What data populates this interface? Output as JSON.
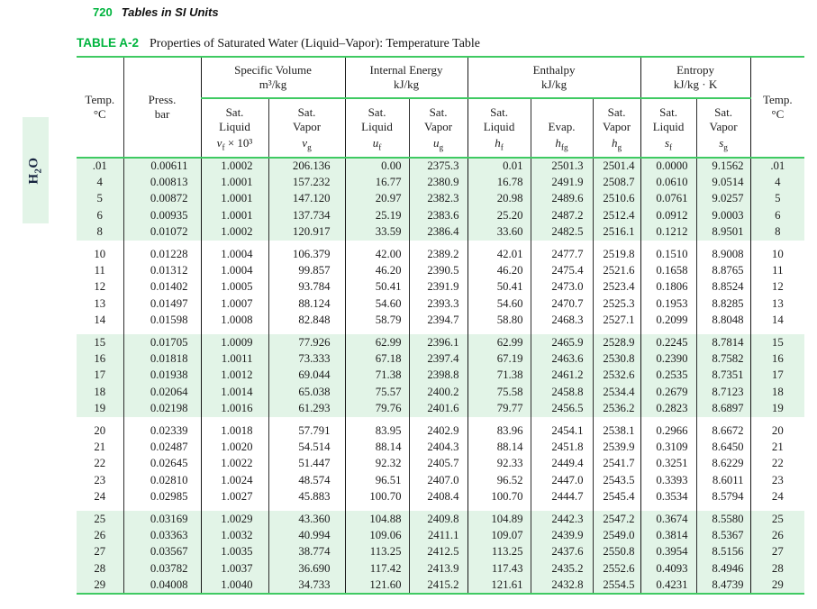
{
  "page": {
    "page_number": "720",
    "section_title": "Tables in SI Units",
    "table_label": "TABLE A-2",
    "table_title": "Properties of Saturated Water (Liquid–Vapor): Temperature Table",
    "side_tab": {
      "pre": "H",
      "sub": "2",
      "post": "O"
    }
  },
  "colors": {
    "accent_green_text": "#00b43e",
    "rule_green": "#3fca62",
    "row_shade_green": "#e2f4e7"
  },
  "table": {
    "left_axis": {
      "l1": "Temp.",
      "l2": "°C"
    },
    "press_axis": {
      "l1": "Press.",
      "l2": "bar"
    },
    "right_axis": {
      "l1": "Temp.",
      "l2": "°C"
    },
    "groups": [
      {
        "title": "Specific Volume",
        "unit": "m³/kg"
      },
      {
        "title": "Internal Energy",
        "unit": "kJ/kg"
      },
      {
        "title": "Enthalpy",
        "unit": "kJ/kg"
      },
      {
        "title": "Entropy",
        "unit": "kJ/kg · K"
      }
    ],
    "subcols": [
      {
        "l1": "Sat.",
        "l2": "Liquid",
        "base": "v",
        "sub": "f",
        "suffix": " × 10³"
      },
      {
        "l1": "Sat.",
        "l2": "Vapor",
        "base": "v",
        "sub": "g",
        "suffix": ""
      },
      {
        "l1": "Sat.",
        "l2": "Liquid",
        "base": "u",
        "sub": "f",
        "suffix": ""
      },
      {
        "l1": "Sat.",
        "l2": "Vapor",
        "base": "u",
        "sub": "g",
        "suffix": ""
      },
      {
        "l1": "Sat.",
        "l2": "Liquid",
        "base": "h",
        "sub": "f",
        "suffix": ""
      },
      {
        "l1": "",
        "l2": "Evap.",
        "base": "h",
        "sub": "fg",
        "suffix": ""
      },
      {
        "l1": "Sat.",
        "l2": "Vapor",
        "base": "h",
        "sub": "g",
        "suffix": ""
      },
      {
        "l1": "Sat.",
        "l2": "Liquid",
        "base": "s",
        "sub": "f",
        "suffix": ""
      },
      {
        "l1": "Sat.",
        "l2": "Vapor",
        "base": "s",
        "sub": "g",
        "suffix": ""
      }
    ],
    "col_keys": [
      "temp",
      "press",
      "vf",
      "vg",
      "uf",
      "ug",
      "hf",
      "hfg",
      "hg",
      "sf",
      "sg",
      "temp-right"
    ],
    "row_groups": [
      {
        "shaded": true,
        "rows": [
          [
            ".01",
            "0.00611",
            "1.0002",
            "206.136",
            "0.00",
            "2375.3",
            "0.01",
            "2501.3",
            "2501.4",
            "0.0000",
            "9.1562",
            ".01"
          ],
          [
            "4",
            "0.00813",
            "1.0001",
            "157.232",
            "16.77",
            "2380.9",
            "16.78",
            "2491.9",
            "2508.7",
            "0.0610",
            "9.0514",
            "4"
          ],
          [
            "5",
            "0.00872",
            "1.0001",
            "147.120",
            "20.97",
            "2382.3",
            "20.98",
            "2489.6",
            "2510.6",
            "0.0761",
            "9.0257",
            "5"
          ],
          [
            "6",
            "0.00935",
            "1.0001",
            "137.734",
            "25.19",
            "2383.6",
            "25.20",
            "2487.2",
            "2512.4",
            "0.0912",
            "9.0003",
            "6"
          ],
          [
            "8",
            "0.01072",
            "1.0002",
            "120.917",
            "33.59",
            "2386.4",
            "33.60",
            "2482.5",
            "2516.1",
            "0.1212",
            "8.9501",
            "8"
          ]
        ]
      },
      {
        "shaded": false,
        "rows": [
          [
            "10",
            "0.01228",
            "1.0004",
            "106.379",
            "42.00",
            "2389.2",
            "42.01",
            "2477.7",
            "2519.8",
            "0.1510",
            "8.9008",
            "10"
          ],
          [
            "11",
            "0.01312",
            "1.0004",
            "99.857",
            "46.20",
            "2390.5",
            "46.20",
            "2475.4",
            "2521.6",
            "0.1658",
            "8.8765",
            "11"
          ],
          [
            "12",
            "0.01402",
            "1.0005",
            "93.784",
            "50.41",
            "2391.9",
            "50.41",
            "2473.0",
            "2523.4",
            "0.1806",
            "8.8524",
            "12"
          ],
          [
            "13",
            "0.01497",
            "1.0007",
            "88.124",
            "54.60",
            "2393.3",
            "54.60",
            "2470.7",
            "2525.3",
            "0.1953",
            "8.8285",
            "13"
          ],
          [
            "14",
            "0.01598",
            "1.0008",
            "82.848",
            "58.79",
            "2394.7",
            "58.80",
            "2468.3",
            "2527.1",
            "0.2099",
            "8.8048",
            "14"
          ]
        ]
      },
      {
        "shaded": true,
        "rows": [
          [
            "15",
            "0.01705",
            "1.0009",
            "77.926",
            "62.99",
            "2396.1",
            "62.99",
            "2465.9",
            "2528.9",
            "0.2245",
            "8.7814",
            "15"
          ],
          [
            "16",
            "0.01818",
            "1.0011",
            "73.333",
            "67.18",
            "2397.4",
            "67.19",
            "2463.6",
            "2530.8",
            "0.2390",
            "8.7582",
            "16"
          ],
          [
            "17",
            "0.01938",
            "1.0012",
            "69.044",
            "71.38",
            "2398.8",
            "71.38",
            "2461.2",
            "2532.6",
            "0.2535",
            "8.7351",
            "17"
          ],
          [
            "18",
            "0.02064",
            "1.0014",
            "65.038",
            "75.57",
            "2400.2",
            "75.58",
            "2458.8",
            "2534.4",
            "0.2679",
            "8.7123",
            "18"
          ],
          [
            "19",
            "0.02198",
            "1.0016",
            "61.293",
            "79.76",
            "2401.6",
            "79.77",
            "2456.5",
            "2536.2",
            "0.2823",
            "8.6897",
            "19"
          ]
        ]
      },
      {
        "shaded": false,
        "rows": [
          [
            "20",
            "0.02339",
            "1.0018",
            "57.791",
            "83.95",
            "2402.9",
            "83.96",
            "2454.1",
            "2538.1",
            "0.2966",
            "8.6672",
            "20"
          ],
          [
            "21",
            "0.02487",
            "1.0020",
            "54.514",
            "88.14",
            "2404.3",
            "88.14",
            "2451.8",
            "2539.9",
            "0.3109",
            "8.6450",
            "21"
          ],
          [
            "22",
            "0.02645",
            "1.0022",
            "51.447",
            "92.32",
            "2405.7",
            "92.33",
            "2449.4",
            "2541.7",
            "0.3251",
            "8.6229",
            "22"
          ],
          [
            "23",
            "0.02810",
            "1.0024",
            "48.574",
            "96.51",
            "2407.0",
            "96.52",
            "2447.0",
            "2543.5",
            "0.3393",
            "8.6011",
            "23"
          ],
          [
            "24",
            "0.02985",
            "1.0027",
            "45.883",
            "100.70",
            "2408.4",
            "100.70",
            "2444.7",
            "2545.4",
            "0.3534",
            "8.5794",
            "24"
          ]
        ]
      },
      {
        "shaded": true,
        "rows": [
          [
            "25",
            "0.03169",
            "1.0029",
            "43.360",
            "104.88",
            "2409.8",
            "104.89",
            "2442.3",
            "2547.2",
            "0.3674",
            "8.5580",
            "25"
          ],
          [
            "26",
            "0.03363",
            "1.0032",
            "40.994",
            "109.06",
            "2411.1",
            "109.07",
            "2439.9",
            "2549.0",
            "0.3814",
            "8.5367",
            "26"
          ],
          [
            "27",
            "0.03567",
            "1.0035",
            "38.774",
            "113.25",
            "2412.5",
            "113.25",
            "2437.6",
            "2550.8",
            "0.3954",
            "8.5156",
            "27"
          ],
          [
            "28",
            "0.03782",
            "1.0037",
            "36.690",
            "117.42",
            "2413.9",
            "117.43",
            "2435.2",
            "2552.6",
            "0.4093",
            "8.4946",
            "28"
          ],
          [
            "29",
            "0.04008",
            "1.0040",
            "34.733",
            "121.60",
            "2415.2",
            "121.61",
            "2432.8",
            "2554.5",
            "0.4231",
            "8.4739",
            "29"
          ]
        ]
      }
    ]
  }
}
